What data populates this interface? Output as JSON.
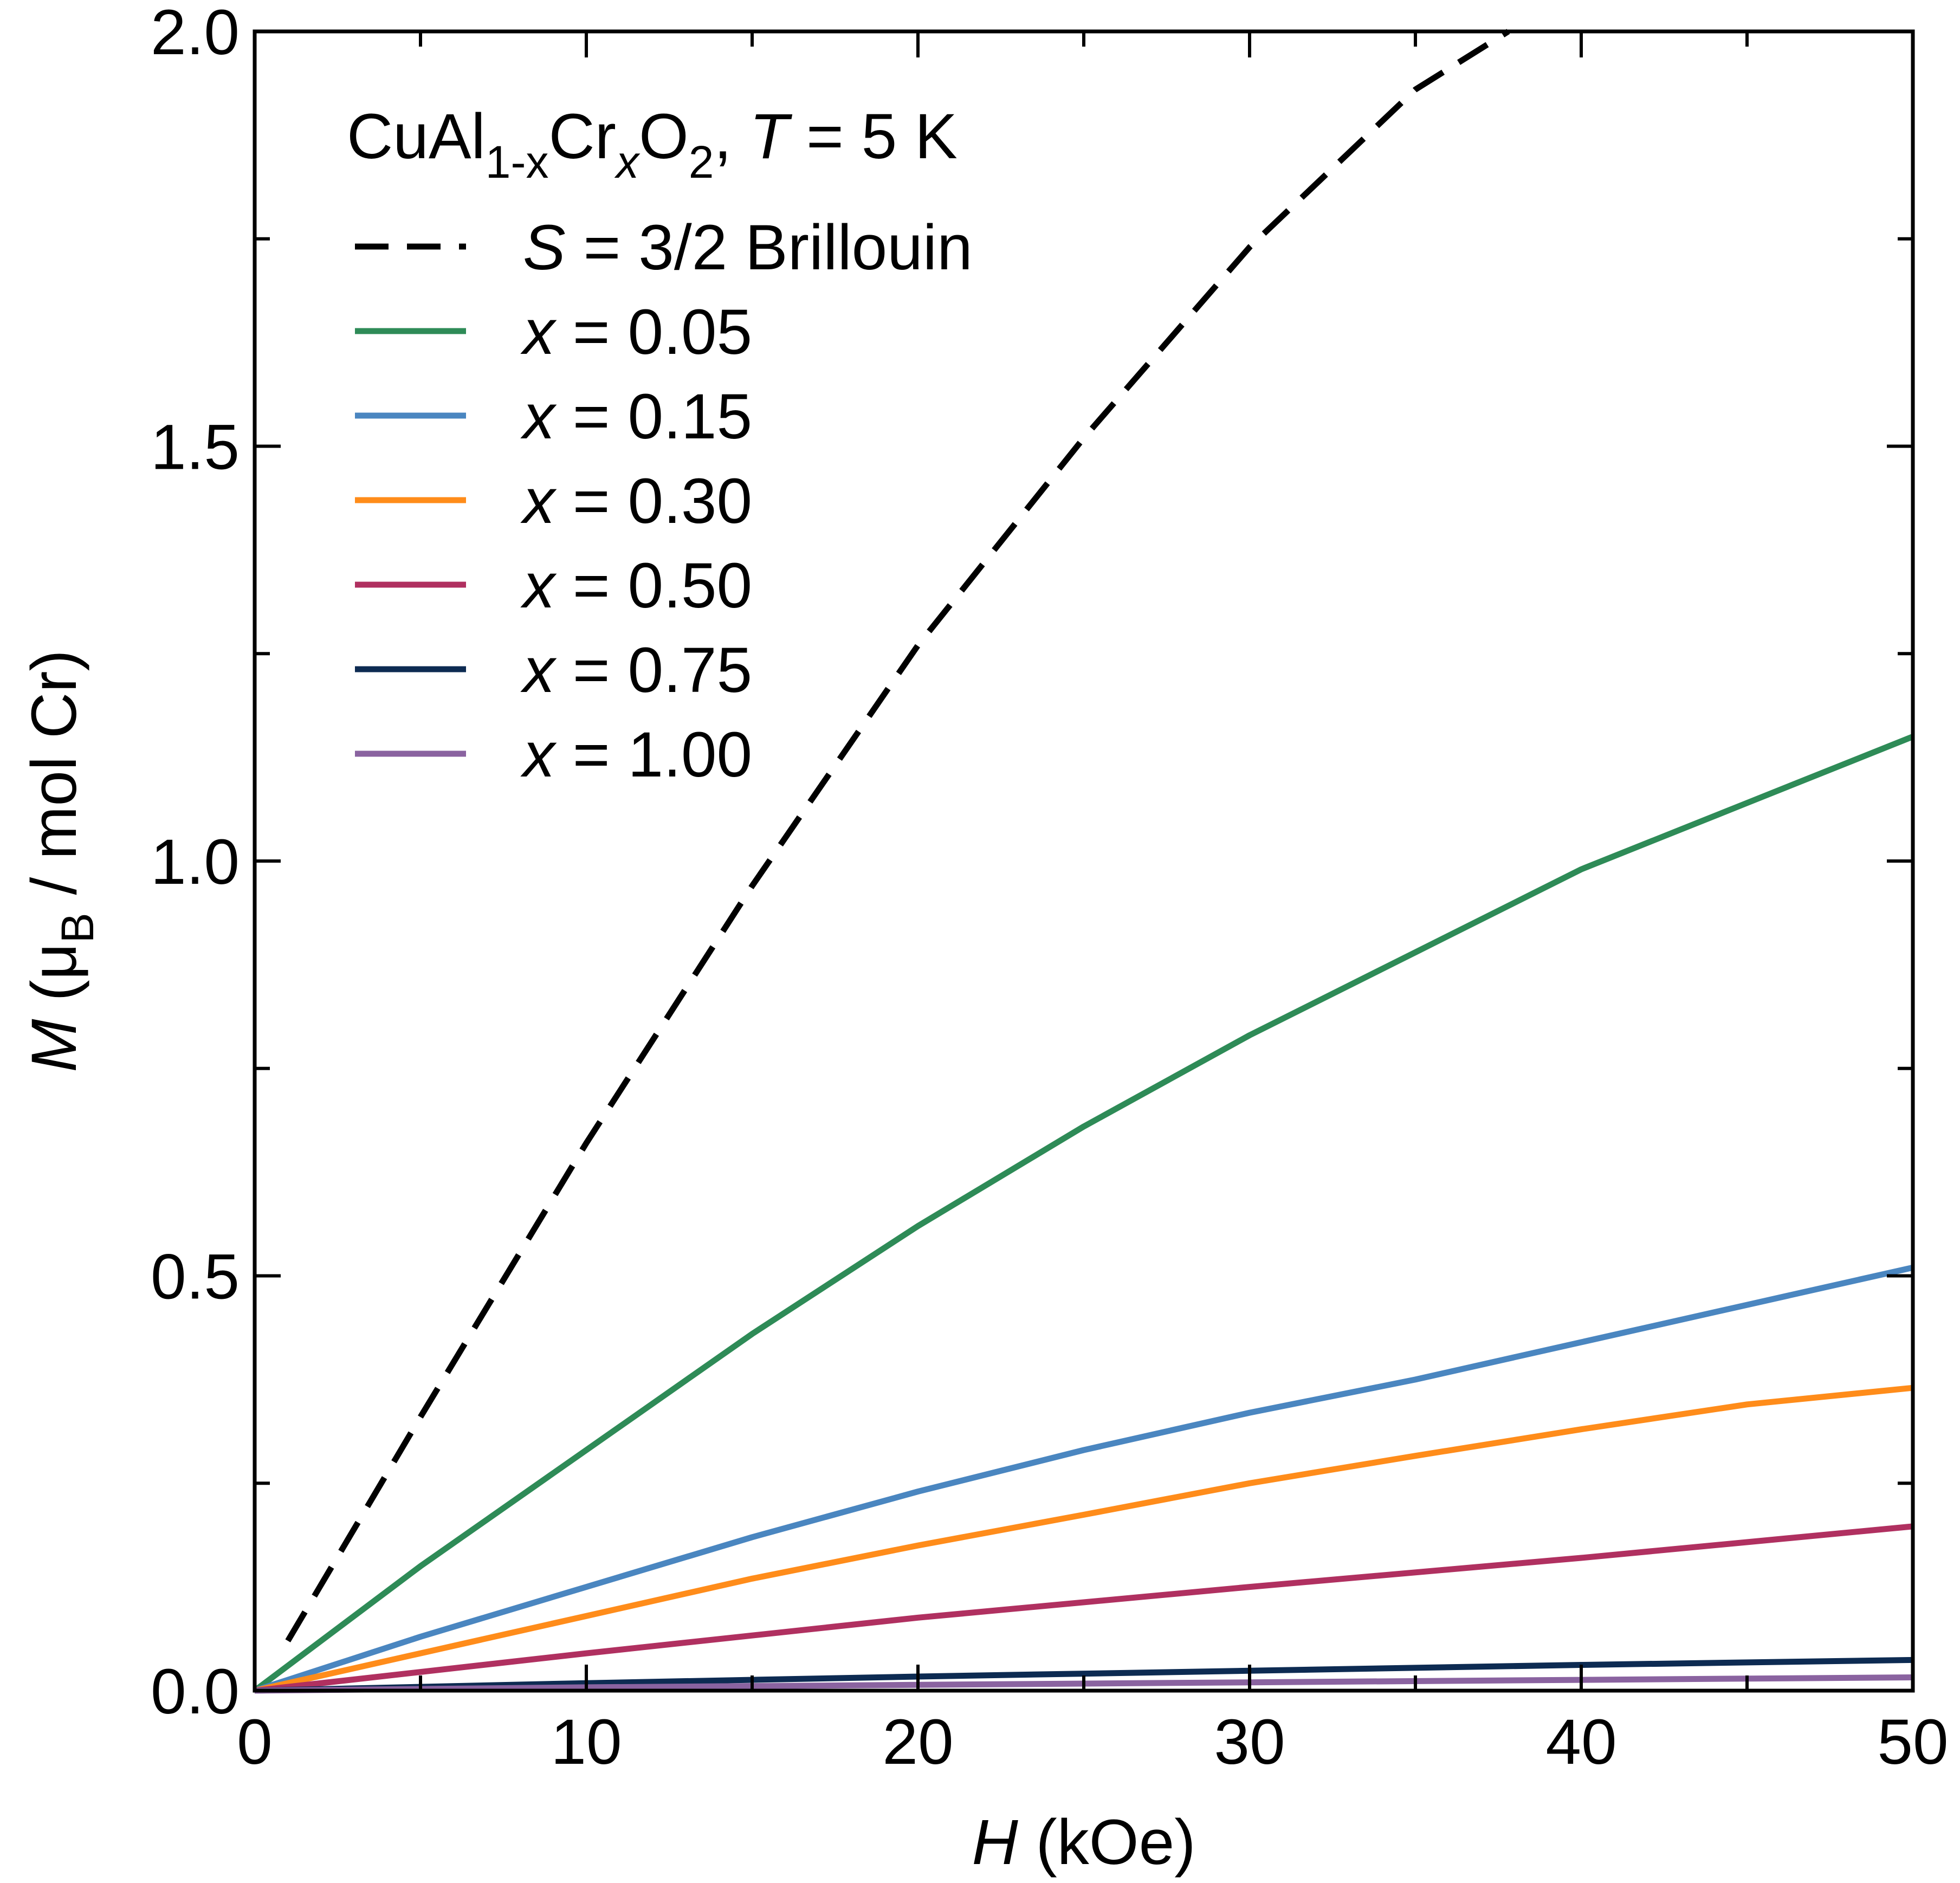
{
  "chart_data": {
    "type": "line",
    "title_parts": {
      "compound_a": "CuAl",
      "sub_1mx": "1-x",
      "compound_b": "Cr",
      "sub_x": "x",
      "compound_c": "O",
      "sub_2": "2",
      "comma": ",",
      "T_symbol": "T",
      "T_value": "= 5 K"
    },
    "xlabel": {
      "symbol": "H",
      "unit": "(kOe)"
    },
    "ylabel": {
      "symbol": "M",
      "open": "(μ",
      "sub": "B",
      "rest": "/ mol Cr)"
    },
    "xlim": [
      0,
      50
    ],
    "ylim": [
      0,
      2.0
    ],
    "x_ticks": [
      {
        "value": 0,
        "label": "0"
      },
      {
        "value": 10,
        "label": "10"
      },
      {
        "value": 20,
        "label": "20"
      },
      {
        "value": 30,
        "label": "30"
      },
      {
        "value": 40,
        "label": "40"
      },
      {
        "value": 50,
        "label": "50"
      }
    ],
    "x_minor_ticks": [
      5,
      15,
      25,
      35,
      45
    ],
    "y_ticks": [
      {
        "value": 0.0,
        "label": "0.0"
      },
      {
        "value": 0.5,
        "label": "0.5"
      },
      {
        "value": 1.0,
        "label": "1.0"
      },
      {
        "value": 1.5,
        "label": "1.5"
      },
      {
        "value": 2.0,
        "label": "2.0"
      }
    ],
    "y_minor_ticks": [
      0.25,
      0.75,
      1.25,
      1.75
    ],
    "legend_position": "top-left",
    "series": [
      {
        "name": "S = 3/2 Brillouin",
        "label_var": "S",
        "label_rest": "= 3/2 Brillouin",
        "color": "#000000",
        "dashed": true,
        "x": [
          1,
          5,
          10,
          15,
          20,
          25,
          30,
          35,
          37.8
        ],
        "y": [
          0.06,
          0.33,
          0.66,
          0.97,
          1.26,
          1.51,
          1.74,
          1.93,
          2.0
        ]
      },
      {
        "name": "x = 0.05",
        "label_var": "x",
        "label_rest": "= 0.05",
        "color": "#2e8b57",
        "dashed": false,
        "x": [
          0,
          5,
          10,
          15,
          20,
          25,
          30,
          35,
          40,
          45,
          50
        ],
        "y": [
          0,
          0.15,
          0.29,
          0.43,
          0.56,
          0.68,
          0.79,
          0.89,
          0.99,
          1.07,
          1.15
        ]
      },
      {
        "name": "x = 0.15",
        "label_var": "x",
        "label_rest": "= 0.15",
        "color": "#4a86c0",
        "dashed": false,
        "x": [
          0,
          5,
          10,
          15,
          20,
          25,
          30,
          35,
          40,
          45,
          50
        ],
        "y": [
          0,
          0.065,
          0.125,
          0.185,
          0.24,
          0.29,
          0.335,
          0.375,
          0.42,
          0.465,
          0.51
        ]
      },
      {
        "name": "x = 0.30",
        "label_var": "x",
        "label_rest": "= 0.30",
        "color": "#ff8c1a",
        "dashed": false,
        "x": [
          0,
          5,
          10,
          15,
          20,
          25,
          30,
          35,
          40,
          45,
          50
        ],
        "y": [
          0,
          0.045,
          0.09,
          0.135,
          0.175,
          0.212,
          0.25,
          0.283,
          0.315,
          0.345,
          0.365
        ]
      },
      {
        "name": "x = 0.50",
        "label_var": "x",
        "label_rest": "= 0.50",
        "color": "#b03060",
        "dashed": false,
        "x": [
          0,
          10,
          20,
          30,
          40,
          50
        ],
        "y": [
          0,
          0.045,
          0.088,
          0.125,
          0.16,
          0.198
        ]
      },
      {
        "name": "x = 0.75",
        "label_var": "x",
        "label_rest": "= 0.75",
        "color": "#0d2b52",
        "dashed": false,
        "x": [
          0,
          10,
          20,
          30,
          40,
          50
        ],
        "y": [
          0,
          0.009,
          0.017,
          0.024,
          0.031,
          0.037
        ]
      },
      {
        "name": "x = 1.00",
        "label_var": "x",
        "label_rest": "= 1.00",
        "color": "#8a63a0",
        "dashed": false,
        "x": [
          0,
          10,
          20,
          30,
          40,
          50
        ],
        "y": [
          0,
          0.004,
          0.007,
          0.01,
          0.013,
          0.016
        ]
      }
    ]
  }
}
